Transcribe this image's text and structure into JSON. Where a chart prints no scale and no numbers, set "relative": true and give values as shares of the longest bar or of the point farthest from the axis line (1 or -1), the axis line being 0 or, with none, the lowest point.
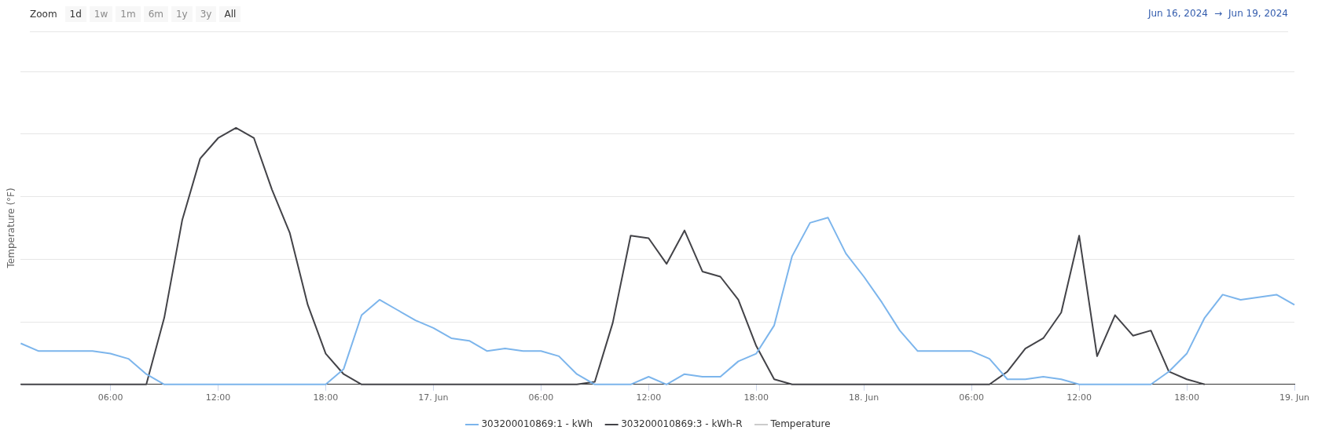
{
  "chart_data": {
    "type": "line",
    "ylabel": "Temperature (°F)",
    "relative": true,
    "annotations": [
      "Zoom",
      "1d",
      "1w",
      "1m",
      "6m",
      "1y",
      "3y",
      "All",
      "Jun 16, 2024",
      "→",
      "Jun 19, 2024"
    ],
    "x": [
      "2024-06-16T01:00",
      "2024-06-16T02:00",
      "2024-06-16T03:00",
      "2024-06-16T04:00",
      "2024-06-16T05:00",
      "2024-06-16T06:00",
      "2024-06-16T07:00",
      "2024-06-16T08:00",
      "2024-06-16T09:00",
      "2024-06-16T10:00",
      "2024-06-16T11:00",
      "2024-06-16T12:00",
      "2024-06-16T13:00",
      "2024-06-16T14:00",
      "2024-06-16T15:00",
      "2024-06-16T16:00",
      "2024-06-16T17:00",
      "2024-06-16T18:00",
      "2024-06-16T19:00",
      "2024-06-16T20:00",
      "2024-06-16T21:00",
      "2024-06-16T22:00",
      "2024-06-16T23:00",
      "2024-06-17T00:00",
      "2024-06-17T01:00",
      "2024-06-17T02:00",
      "2024-06-17T03:00",
      "2024-06-17T04:00",
      "2024-06-17T05:00",
      "2024-06-17T06:00",
      "2024-06-17T07:00",
      "2024-06-17T08:00",
      "2024-06-17T09:00",
      "2024-06-17T10:00",
      "2024-06-17T11:00",
      "2024-06-17T12:00",
      "2024-06-17T13:00",
      "2024-06-17T14:00",
      "2024-06-17T15:00",
      "2024-06-17T16:00",
      "2024-06-17T17:00",
      "2024-06-17T18:00",
      "2024-06-17T19:00",
      "2024-06-17T20:00",
      "2024-06-17T21:00",
      "2024-06-17T22:00",
      "2024-06-17T23:00",
      "2024-06-18T00:00",
      "2024-06-18T01:00",
      "2024-06-18T02:00",
      "2024-06-18T03:00",
      "2024-06-18T04:00",
      "2024-06-18T05:00",
      "2024-06-18T06:00",
      "2024-06-18T07:00",
      "2024-06-18T08:00",
      "2024-06-18T09:00",
      "2024-06-18T10:00",
      "2024-06-18T11:00",
      "2024-06-18T12:00",
      "2024-06-18T13:00",
      "2024-06-18T14:00",
      "2024-06-18T15:00",
      "2024-06-18T16:00",
      "2024-06-18T17:00",
      "2024-06-18T18:00",
      "2024-06-18T19:00",
      "2024-06-18T20:00",
      "2024-06-18T21:00",
      "2024-06-18T22:00",
      "2024-06-18T23:00",
      "2024-06-19T00:00"
    ],
    "xlim": [
      "2024-06-16T01:00",
      "2024-06-19T00:00"
    ],
    "xticks": [
      {
        "value": "2024-06-16T06:00",
        "label": "06:00"
      },
      {
        "value": "2024-06-16T12:00",
        "label": "12:00"
      },
      {
        "value": "2024-06-16T18:00",
        "label": "18:00"
      },
      {
        "value": "2024-06-17T00:00",
        "label": "17. Jun"
      },
      {
        "value": "2024-06-17T06:00",
        "label": "06:00"
      },
      {
        "value": "2024-06-17T12:00",
        "label": "12:00"
      },
      {
        "value": "2024-06-17T18:00",
        "label": "18:00"
      },
      {
        "value": "2024-06-18T00:00",
        "label": "18. Jun"
      },
      {
        "value": "2024-06-18T06:00",
        "label": "06:00"
      },
      {
        "value": "2024-06-18T12:00",
        "label": "12:00"
      },
      {
        "value": "2024-06-18T18:00",
        "label": "18:00"
      },
      {
        "value": "2024-06-19T00:00",
        "label": "19. Jun"
      }
    ],
    "series": [
      {
        "name": "303200010869:1 - kWh",
        "color": "#7cb5ec",
        "values": [
          0.16,
          0.13,
          0.13,
          0.13,
          0.13,
          0.12,
          0.1,
          0.04,
          0,
          0,
          0,
          0,
          0,
          0,
          0,
          0,
          0,
          0,
          0.06,
          0.27,
          0.33,
          0.29,
          0.25,
          0.22,
          0.18,
          0.17,
          0.13,
          0.14,
          0.13,
          0.13,
          0.11,
          0.04,
          0,
          0,
          0,
          0.03,
          0,
          0.04,
          0.03,
          0.03,
          0.09,
          0.12,
          0.23,
          0.5,
          0.63,
          0.65,
          0.51,
          0.42,
          0.32,
          0.21,
          0.13,
          0.13,
          0.13,
          0.13,
          0.1,
          0.02,
          0.02,
          0.03,
          0.02,
          0,
          0,
          0,
          0,
          0,
          0.05,
          0.12,
          0.26,
          0.35,
          0.33,
          0.34,
          0.35,
          0.31
        ]
      },
      {
        "name": "303200010869:3 - kWh-R",
        "color": "#434348",
        "values": [
          0,
          0,
          0,
          0,
          0,
          0,
          0,
          0,
          0.26,
          0.64,
          0.88,
          0.96,
          1,
          0.96,
          0.76,
          0.59,
          0.31,
          0.12,
          0.04,
          0,
          0,
          0,
          0,
          0,
          0,
          0,
          0,
          0,
          0,
          0,
          0,
          0,
          0.01,
          0.24,
          0.58,
          0.57,
          0.47,
          0.6,
          0.44,
          0.42,
          0.33,
          0.15,
          0.02,
          0,
          0,
          0,
          0,
          0,
          0,
          0,
          0,
          0,
          0,
          0,
          0,
          0.05,
          0.14,
          0.18,
          0.28,
          0.58,
          0.11,
          0.27,
          0.19,
          0.21,
          0.05,
          0.02,
          0,
          null,
          null,
          null,
          null,
          null
        ]
      },
      {
        "name": "Temperature",
        "color": "#cccccc",
        "values": [
          null,
          null,
          null,
          null,
          null,
          null,
          null,
          null,
          null,
          null,
          null,
          null,
          null,
          null,
          null,
          null,
          null,
          null,
          null,
          null,
          null,
          null,
          null,
          null,
          null,
          null,
          null,
          null,
          null,
          null,
          null,
          null,
          null,
          null,
          null,
          null,
          null,
          null,
          null,
          null,
          null,
          null,
          null,
          null,
          null,
          null,
          null,
          null,
          null,
          null,
          null,
          null,
          null,
          null,
          null,
          null,
          null,
          null,
          null,
          null,
          null,
          null,
          null,
          null,
          null,
          null,
          null,
          null,
          null,
          null,
          null,
          null
        ]
      }
    ],
    "grid": "y",
    "legend": "bottom",
    "marker": "none",
    "line_style": "solid"
  }
}
